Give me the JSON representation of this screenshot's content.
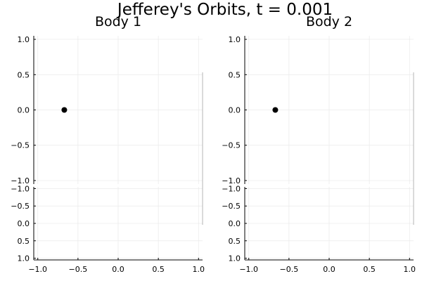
{
  "title": "Jefferey's Orbits, t = 0.001",
  "colors": {
    "background": "#ffffff",
    "grid": "#ebebeb",
    "axis": "#000000",
    "point": "#000000",
    "edge": "#b4b4b4"
  },
  "chart_data": [
    {
      "type": "scatter",
      "title": "Body 1",
      "xlabel": "",
      "ylabel": "",
      "xlim": [
        -1.05,
        1.05
      ],
      "ylim": [
        -1.05,
        1.05
      ],
      "x_ticks": [
        -1.0,
        -0.5,
        0.0,
        0.5,
        1.0
      ],
      "x_tick_labels": [
        "−1.0",
        "−0.5",
        "0.0",
        "0.5",
        "1.0"
      ],
      "y_ticks_upper": [
        1.0,
        0.5,
        0.0,
        -0.5,
        -1.0
      ],
      "y_tick_labels_upper": [
        "1.0",
        "0.5",
        "0.0",
        "−0.5",
        "−1.0"
      ],
      "y_ticks_lower": [
        -1.0,
        -0.5,
        0.0,
        0.5,
        1.0
      ],
      "y_tick_labels_lower": [
        "−1.0",
        "−0.5",
        "0.0",
        "0.5",
        "1.0"
      ],
      "grid": true,
      "legend": "none",
      "points": [
        {
          "x": -0.67,
          "y": 0.0
        }
      ]
    },
    {
      "type": "scatter",
      "title": "Body 2",
      "xlabel": "",
      "ylabel": "",
      "xlim": [
        -1.05,
        1.05
      ],
      "ylim": [
        -1.05,
        1.05
      ],
      "x_ticks": [
        -1.0,
        -0.5,
        0.0,
        0.5,
        1.0
      ],
      "x_tick_labels": [
        "−1.0",
        "−0.5",
        "0.0",
        "0.5",
        "1.0"
      ],
      "y_ticks_upper": [
        1.0,
        0.5,
        0.0,
        -0.5,
        -1.0
      ],
      "y_tick_labels_upper": [
        "1.0",
        "0.5",
        "0.0",
        "−0.5",
        "−1.0"
      ],
      "y_ticks_lower": [
        -1.0,
        -0.5,
        0.0,
        0.5,
        1.0
      ],
      "y_tick_labels_lower": [
        "−1.0",
        "−0.5",
        "0.0",
        "0.5",
        "1.0"
      ],
      "grid": true,
      "legend": "none",
      "points": [
        {
          "x": -0.67,
          "y": 0.0
        }
      ]
    }
  ]
}
